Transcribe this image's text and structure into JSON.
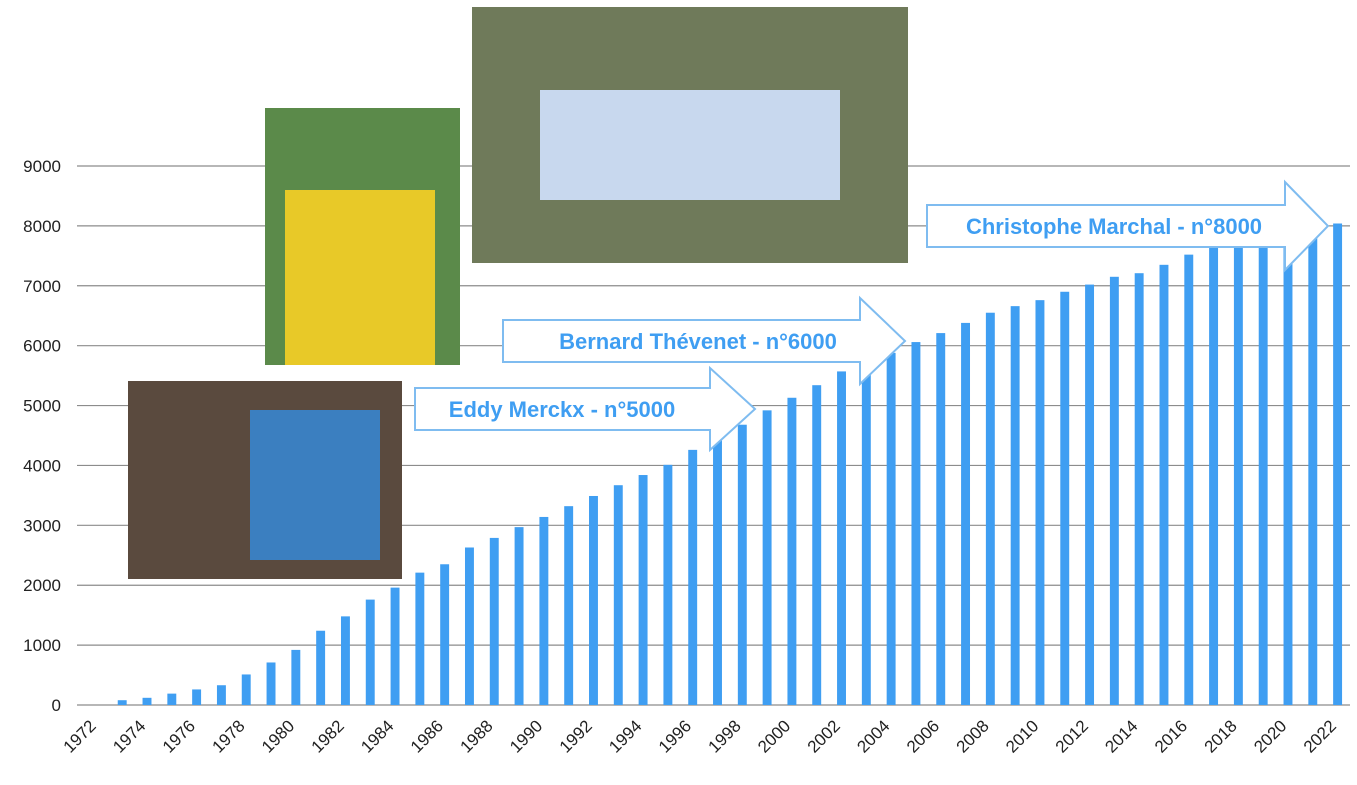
{
  "chart_data": {
    "type": "bar",
    "categories": [
      "1972",
      null,
      "1974",
      null,
      "1976",
      null,
      "1978",
      null,
      "1980",
      null,
      "1982",
      null,
      "1984",
      null,
      "1986",
      null,
      "1988",
      null,
      "1990",
      null,
      "1992",
      null,
      "1994",
      null,
      "1996",
      null,
      "1998",
      null,
      "2000",
      null,
      "2002",
      null,
      "2004",
      null,
      "2006",
      null,
      "2008",
      null,
      "2010",
      null,
      "2012",
      null,
      "2014",
      null,
      "2016",
      null,
      "2018",
      null,
      "2020",
      null,
      "2022"
    ],
    "values": [
      0,
      80,
      120,
      190,
      260,
      330,
      510,
      710,
      920,
      1240,
      1480,
      1760,
      1960,
      2210,
      2350,
      2630,
      2790,
      2970,
      3140,
      3320,
      3490,
      3670,
      3840,
      4010,
      4260,
      4450,
      4680,
      4920,
      5130,
      5340,
      5570,
      5680,
      5880,
      6060,
      6210,
      6380,
      6550,
      6660,
      6760,
      6900,
      7020,
      7150,
      7210,
      7350,
      7520,
      7650,
      7700,
      7750,
      7700,
      7850,
      8040
    ],
    "color": "#3f9ef2",
    "ylim": [
      0,
      9000
    ],
    "yticks": [
      0,
      1000,
      2000,
      3000,
      4000,
      5000,
      6000,
      7000,
      8000,
      9000
    ],
    "grid": true,
    "annotations": [
      "Eddy Merckx - n°5000",
      "Bernard Thévenet - n°6000",
      "Christophe Marchal - n°8000"
    ]
  }
}
